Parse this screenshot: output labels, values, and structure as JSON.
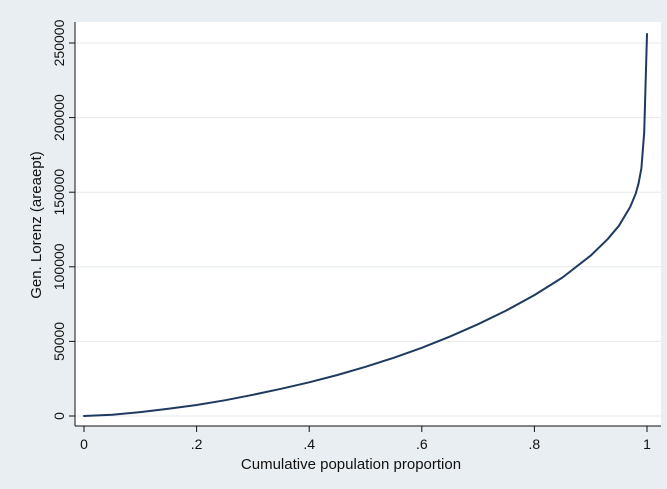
{
  "chart_data": {
    "type": "line",
    "title": "",
    "xlabel": "Cumulative population proportion",
    "ylabel": "Gen. Lorenz (areaept)",
    "xlim": [
      0,
      1
    ],
    "ylim": [
      0,
      255000
    ],
    "x_ticks": [
      {
        "value": 0,
        "label": "0"
      },
      {
        "value": 0.2,
        "label": ".2"
      },
      {
        "value": 0.4,
        "label": ".4"
      },
      {
        "value": 0.6,
        "label": ".6"
      },
      {
        "value": 0.8,
        "label": ".8"
      },
      {
        "value": 1,
        "label": "1"
      }
    ],
    "y_ticks": [
      {
        "value": 0,
        "label": "0"
      },
      {
        "value": 50000,
        "label": "50000"
      },
      {
        "value": 100000,
        "label": "100000"
      },
      {
        "value": 150000,
        "label": "150000"
      },
      {
        "value": 200000,
        "label": "200000"
      },
      {
        "value": 250000,
        "label": "250000"
      }
    ],
    "grid": true,
    "series": [
      {
        "color": "#1f3a60",
        "x": [
          0,
          0.05,
          0.1,
          0.15,
          0.2,
          0.25,
          0.3,
          0.35,
          0.4,
          0.45,
          0.5,
          0.55,
          0.6,
          0.65,
          0.7,
          0.75,
          0.8,
          0.85,
          0.9,
          0.93,
          0.95,
          0.97,
          0.98,
          0.985,
          0.99,
          0.995,
          1.0
        ],
        "y": [
          0,
          800,
          2600,
          4800,
          7400,
          10500,
          14200,
          18200,
          22600,
          27500,
          33000,
          39000,
          45700,
          53200,
          61500,
          70700,
          81000,
          92800,
          107500,
          118500,
          127500,
          140000,
          149000,
          156000,
          166000,
          190000,
          256000
        ]
      }
    ]
  }
}
